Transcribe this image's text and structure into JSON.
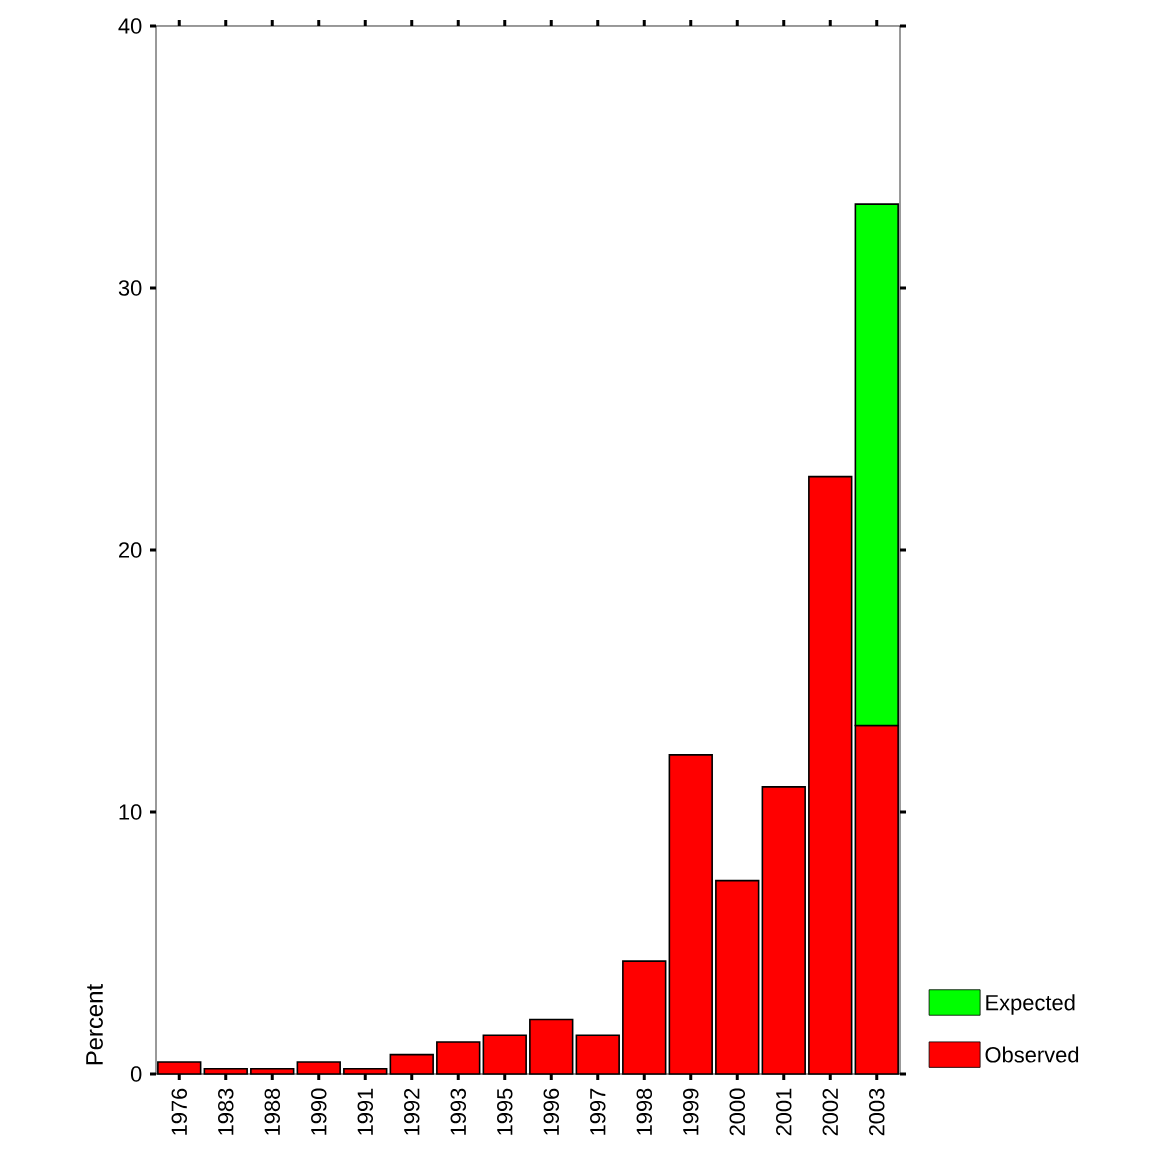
{
  "chart_data": {
    "type": "bar",
    "stacked": true,
    "ylabel": "Percent",
    "categories": [
      "1976",
      "1983",
      "1988",
      "1990",
      "1991",
      "1992",
      "1993",
      "1995",
      "1996",
      "1997",
      "1998",
      "1999",
      "2000",
      "2001",
      "2002",
      "2003"
    ],
    "series": [
      {
        "name": "Observed",
        "color": "#ff0000",
        "values": [
          0.46,
          0.2,
          0.2,
          0.46,
          0.2,
          0.74,
          1.22,
          1.48,
          2.08,
          1.48,
          4.31,
          12.18,
          7.38,
          10.96,
          22.8,
          13.3
        ]
      },
      {
        "name": "Expected",
        "color": "#00ff00",
        "values": [
          null,
          null,
          null,
          null,
          null,
          null,
          null,
          null,
          null,
          null,
          null,
          null,
          null,
          null,
          null,
          19.9
        ]
      }
    ],
    "ylim": [
      0,
      40
    ],
    "yticks": [
      0,
      10,
      20,
      30,
      40
    ],
    "grid": false,
    "legend": "bottom right"
  }
}
